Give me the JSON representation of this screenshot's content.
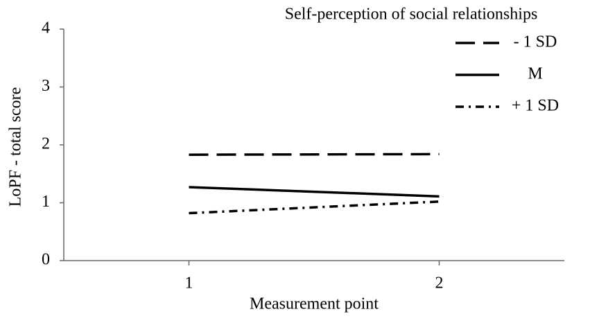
{
  "chart_data": {
    "type": "line",
    "legend_title": "Self-perception of social relationships",
    "xlabel": "Measurement point",
    "ylabel": "LoPF - total score",
    "categories": [
      "1",
      "2"
    ],
    "series": [
      {
        "name": "- 1 SD",
        "color": "#000000",
        "line_style": "dashed",
        "values": [
          1.83,
          1.84
        ]
      },
      {
        "name": "M",
        "color": "#000000",
        "line_style": "solid",
        "values": [
          1.27,
          1.11
        ]
      },
      {
        "name": "+ 1 SD",
        "color": "#000000",
        "line_style": "dashdot",
        "values": [
          0.82,
          1.02
        ]
      }
    ],
    "ylim": [
      0,
      4
    ],
    "yticks": [
      0,
      1,
      2,
      3,
      4
    ],
    "grid": false,
    "legend": "upper right"
  }
}
